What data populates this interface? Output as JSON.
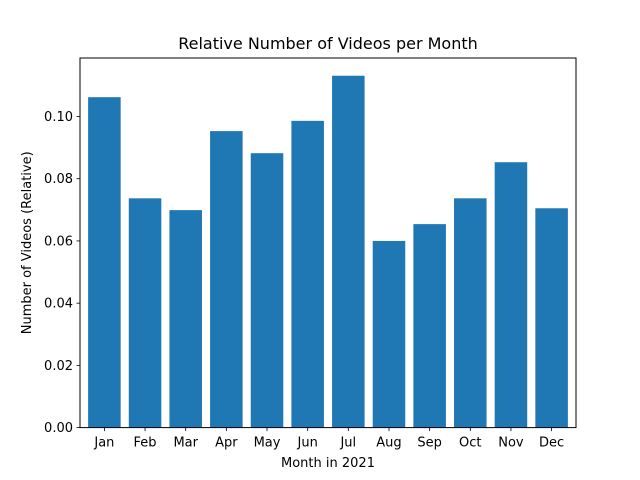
{
  "chart_data": {
    "type": "bar",
    "title": "Relative Number of Videos per Month",
    "xlabel": "Month in 2021",
    "ylabel": "Number of Videos (Relative)",
    "categories": [
      "Jan",
      "Feb",
      "Mar",
      "Apr",
      "May",
      "Jun",
      "Jul",
      "Aug",
      "Sep",
      "Oct",
      "Nov",
      "Dec"
    ],
    "values": [
      0.1062,
      0.0737,
      0.0699,
      0.0953,
      0.0882,
      0.0986,
      0.1131,
      0.06,
      0.0654,
      0.0737,
      0.0853,
      0.0705
    ],
    "ylim": [
      0,
      0.1188
    ],
    "yticks": [
      0.0,
      0.02,
      0.04,
      0.06,
      0.08,
      0.1
    ],
    "ytick_labels": [
      "0.00",
      "0.02",
      "0.04",
      "0.06",
      "0.08",
      "0.10"
    ],
    "bar_color": "#1f77b4",
    "grid": false,
    "legend": "none"
  }
}
